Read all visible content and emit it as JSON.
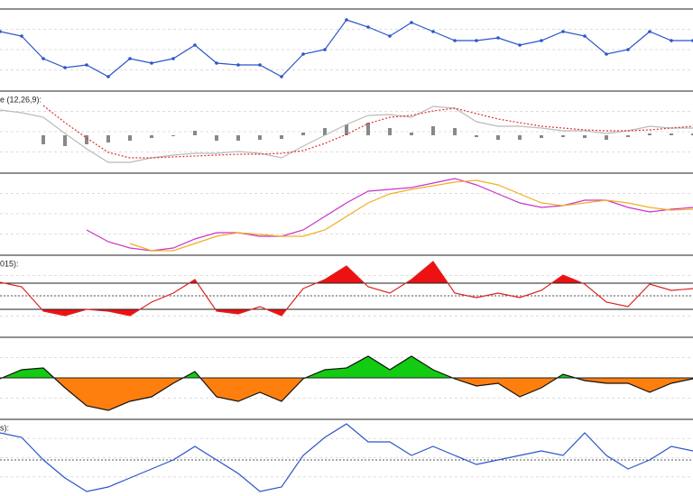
{
  "chart_data": [
    {
      "type": "line",
      "ylim": [
        0,
        90
      ],
      "series": [
        {
          "color": "#2b55c9",
          "markers": true,
          "values": [
            65,
            60,
            35,
            25,
            28,
            15,
            35,
            30,
            35,
            50,
            30,
            28,
            28,
            15,
            40,
            45,
            78,
            70,
            60,
            75,
            65,
            55,
            55,
            58,
            50,
            55,
            65,
            60,
            40,
            45,
            65,
            55,
            55
          ]
        }
      ]
    },
    {
      "type": "line",
      "label": "e (12,26,9):",
      "ylim": [
        0,
        90
      ],
      "baseline": 41,
      "series": [
        {
          "color": "#888888",
          "style": "bar",
          "values": [
            null,
            null,
            31,
            29,
            31,
            33,
            35,
            38,
            40,
            46,
            35,
            35,
            36,
            37,
            44,
            49,
            53,
            55,
            49,
            44,
            51,
            49,
            39,
            36,
            36,
            38,
            39,
            38,
            36,
            39,
            43,
            43,
            43
          ]
        },
        {
          "color": "#bbbbbb",
          "style": "solid",
          "values": [
            69,
            66,
            61,
            43,
            26,
            11,
            11,
            16,
            19,
            21,
            21,
            23,
            21,
            16,
            29,
            41,
            53,
            63,
            64,
            61,
            73,
            71,
            56,
            51,
            51,
            49,
            46,
            46,
            43,
            46,
            51,
            49,
            49
          ]
        },
        {
          "color": "#e03030",
          "style": "dotted",
          "values": [
            null,
            null,
            74,
            55,
            38,
            22,
            16,
            16,
            17,
            18,
            19,
            20,
            20,
            21,
            24,
            32,
            42,
            54,
            61,
            63,
            68,
            71,
            65,
            59,
            55,
            51,
            49,
            47,
            46,
            46,
            47,
            49,
            51
          ]
        }
      ]
    },
    {
      "type": "line",
      "ylim": [
        0,
        90
      ],
      "series": [
        {
          "color": "#cc33cc",
          "style": "solid",
          "values": [
            null,
            null,
            null,
            null,
            27,
            14,
            7,
            4,
            7,
            17,
            24,
            24,
            20,
            20,
            27,
            42,
            57,
            70,
            72,
            74,
            79,
            84,
            77,
            67,
            57,
            52,
            54,
            60,
            60,
            52,
            47,
            50,
            52
          ]
        },
        {
          "color": "#f0b020",
          "style": "solid",
          "values": [
            null,
            null,
            null,
            null,
            null,
            null,
            12,
            4,
            4,
            12,
            20,
            24,
            22,
            20,
            20,
            27,
            42,
            57,
            67,
            72,
            76,
            80,
            82,
            77,
            67,
            57,
            54,
            57,
            60,
            57,
            52,
            49,
            50
          ]
        }
      ]
    },
    {
      "type": "band",
      "label": "015):",
      "ylim": [
        0,
        90
      ],
      "levels": [
        59,
        45,
        30
      ],
      "fill": "#ee1111",
      "series": [
        {
          "color": "#dd2222",
          "values": [
            60,
            55,
            28,
            23,
            30,
            28,
            23,
            38,
            48,
            63,
            28,
            25,
            33,
            23,
            53,
            63,
            78,
            55,
            48,
            63,
            83,
            48,
            43,
            48,
            43,
            51,
            68,
            58,
            38,
            33,
            58,
            51,
            53
          ]
        }
      ]
    },
    {
      "type": "area",
      "ylim": [
        0,
        90
      ],
      "baseline": 45,
      "up_color": "#11cc11",
      "down_color": "#ff7f0e",
      "series": [
        {
          "color": "#111111",
          "values": [
            44,
            54,
            56,
            34,
            14,
            9,
            19,
            24,
            39,
            52,
            24,
            19,
            29,
            19,
            44,
            54,
            56,
            69,
            54,
            69,
            54,
            44,
            36,
            39,
            24,
            34,
            49,
            42,
            39,
            39,
            29,
            39,
            44
          ]
        }
      ]
    },
    {
      "type": "line",
      "label": "s):",
      "ylim": [
        0,
        85
      ],
      "reference": 40,
      "series": [
        {
          "color": "#2b55c9",
          "style": "solid",
          "values": [
            70,
            65,
            40,
            20,
            5,
            10,
            20,
            30,
            40,
            55,
            40,
            25,
            5,
            10,
            45,
            65,
            80,
            60,
            60,
            45,
            55,
            45,
            35,
            40,
            45,
            50,
            45,
            70,
            45,
            30,
            40,
            55,
            50
          ]
        }
      ]
    }
  ]
}
